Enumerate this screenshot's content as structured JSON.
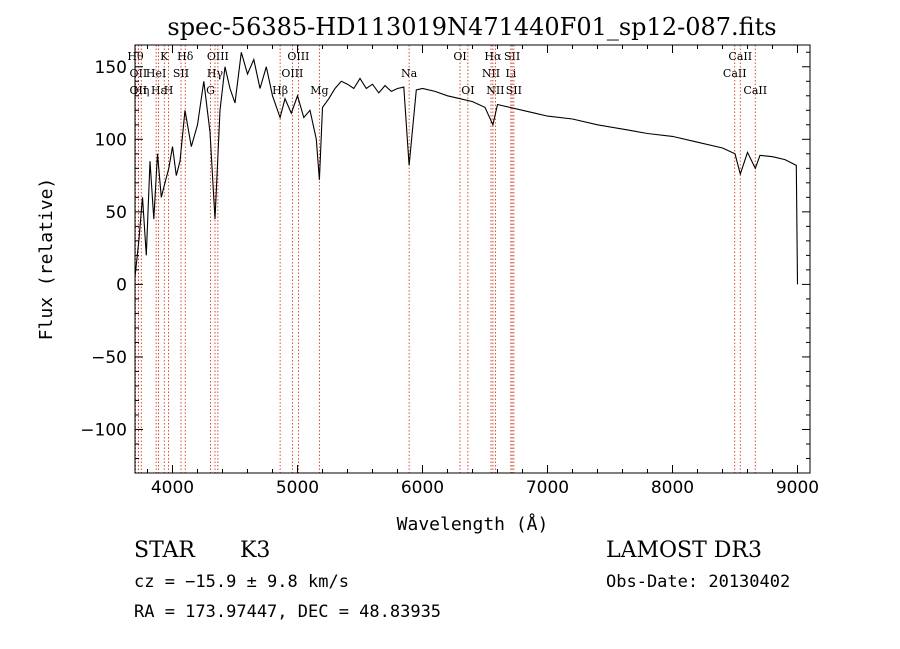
{
  "chart_data": {
    "type": "line",
    "title": "spec-56385-HD113019N471440F01_sp12-087.fits",
    "xlabel": "Wavelength (Å)",
    "ylabel": "Flux (relative)",
    "xlim": [
      3700,
      9100
    ],
    "ylim": [
      -130,
      165
    ],
    "xticks": [
      4000,
      5000,
      6000,
      7000,
      8000,
      9000
    ],
    "yticks": [
      -100,
      -50,
      0,
      50,
      100,
      150
    ],
    "grid": false,
    "series": [
      {
        "name": "spectrum",
        "x": [
          3700,
          3730,
          3760,
          3790,
          3820,
          3850,
          3880,
          3910,
          3940,
          3970,
          4000,
          4030,
          4060,
          4100,
          4150,
          4200,
          4250,
          4300,
          4340,
          4380,
          4420,
          4460,
          4500,
          4550,
          4600,
          4650,
          4700,
          4750,
          4800,
          4861,
          4900,
          4950,
          5000,
          5050,
          5100,
          5150,
          5175,
          5200,
          5250,
          5300,
          5350,
          5400,
          5450,
          5500,
          5550,
          5600,
          5650,
          5700,
          5750,
          5800,
          5850,
          5893,
          5950,
          6000,
          6100,
          6200,
          6300,
          6400,
          6500,
          6563,
          6600,
          6700,
          6800,
          6900,
          7000,
          7200,
          7400,
          7600,
          7800,
          8000,
          8200,
          8400,
          8500,
          8542,
          8600,
          8662,
          8700,
          8800,
          8900,
          8990,
          9000
        ],
        "y": [
          5,
          30,
          60,
          20,
          85,
          45,
          90,
          60,
          70,
          80,
          95,
          75,
          85,
          120,
          95,
          110,
          140,
          105,
          45,
          120,
          150,
          135,
          125,
          160,
          145,
          155,
          135,
          150,
          130,
          115,
          128,
          118,
          130,
          115,
          120,
          100,
          72,
          122,
          128,
          135,
          140,
          138,
          135,
          142,
          135,
          138,
          132,
          137,
          133,
          135,
          136,
          82,
          134,
          135,
          133,
          130,
          128,
          126,
          122,
          110,
          124,
          122,
          120,
          118,
          116,
          114,
          110,
          107,
          104,
          102,
          98,
          94,
          90,
          76,
          91,
          80,
          89,
          88,
          86,
          82,
          0
        ]
      }
    ],
    "lines": [
      {
        "wl": 3704,
        "label": "Hθ",
        "row": 0
      },
      {
        "wl": 3727,
        "label": "OII",
        "row": 1
      },
      {
        "wl": 3727,
        "label": "OII",
        "row": 2
      },
      {
        "wl": 3750,
        "label": "Hη",
        "row": 2
      },
      {
        "wl": 3889,
        "label": "Hε",
        "row": 2
      },
      {
        "wl": 3934,
        "label": "K",
        "row": 0
      },
      {
        "wl": 3869,
        "label": "HeI",
        "row": 1
      },
      {
        "wl": 3968,
        "label": "H",
        "row": 2
      },
      {
        "wl": 4068,
        "label": "SII",
        "row": 1
      },
      {
        "wl": 4102,
        "label": "Hδ",
        "row": 0
      },
      {
        "wl": 4304,
        "label": "G",
        "row": 2
      },
      {
        "wl": 4340,
        "label": "Hγ",
        "row": 1
      },
      {
        "wl": 4363,
        "label": "OIII",
        "row": 0
      },
      {
        "wl": 4861,
        "label": "Hβ",
        "row": 2
      },
      {
        "wl": 4959,
        "label": "OIII",
        "row": 1
      },
      {
        "wl": 5007,
        "label": "OIII",
        "row": 0
      },
      {
        "wl": 5175,
        "label": "Mg",
        "row": 2
      },
      {
        "wl": 5893,
        "label": "Na",
        "row": 1
      },
      {
        "wl": 6300,
        "label": "OI",
        "row": 0
      },
      {
        "wl": 6363,
        "label": "OI",
        "row": 2
      },
      {
        "wl": 6548,
        "label": "NII",
        "row": 1
      },
      {
        "wl": 6563,
        "label": "Hα",
        "row": 0
      },
      {
        "wl": 6583,
        "label": "NII",
        "row": 2
      },
      {
        "wl": 6707,
        "label": "Li",
        "row": 1
      },
      {
        "wl": 6717,
        "label": "SII",
        "row": 0
      },
      {
        "wl": 6731,
        "label": "SII",
        "row": 2
      },
      {
        "wl": 8498,
        "label": "CaII",
        "row": 1
      },
      {
        "wl": 8542,
        "label": "CaII",
        "row": 0
      },
      {
        "wl": 8662,
        "label": "CaII",
        "row": 2
      }
    ]
  },
  "info": {
    "object_class": "STAR",
    "subclass": "K3",
    "survey": "LAMOST DR3",
    "cz": "cz = −15.9 ± 9.8 km/s",
    "obs_date": "Obs-Date: 20130402",
    "coords": "RA = 173.97447, DEC =  48.83935"
  },
  "colors": {
    "spectrum": "#000000",
    "line_markers": "#cc2200"
  }
}
